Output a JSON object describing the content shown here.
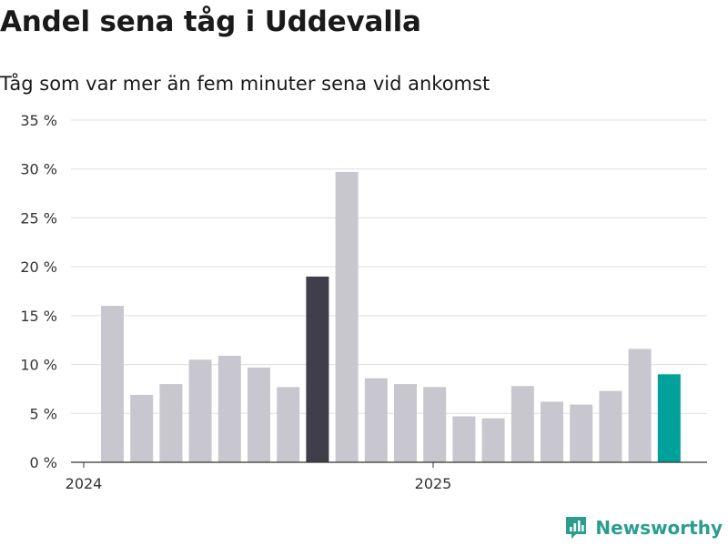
{
  "chart_data": {
    "type": "bar",
    "title": "Andel sena tåg i Uddevalla",
    "subtitle": "Tåg som var mer än fem minuter sena vid ankomst",
    "xlabel": "",
    "ylabel": "",
    "ylim": [
      0,
      35
    ],
    "yticks": [
      0,
      5,
      10,
      15,
      20,
      25,
      30,
      35
    ],
    "ytick_labels": [
      "0 %",
      "5 %",
      "10 %",
      "15 %",
      "20 %",
      "25 %",
      "30 %",
      "35 %"
    ],
    "xtick_labels": [
      {
        "label": "2024",
        "index": 0
      },
      {
        "label": "2025",
        "index": 12
      }
    ],
    "values": [
      16.0,
      6.9,
      8.0,
      10.5,
      10.9,
      9.7,
      7.7,
      19.0,
      29.7,
      8.6,
      8.0,
      7.7,
      4.7,
      4.5,
      7.8,
      6.2,
      5.9,
      7.3,
      11.6,
      9.0
    ],
    "highlight": {
      "dark_index": 7,
      "accent_index": 19
    },
    "grid": true,
    "legend": "none",
    "colors": {
      "bar": "#c8c7cf",
      "dark": "#3f3e4a",
      "accent": "#00a19a",
      "grid": "#dddddd",
      "axis": "#333333"
    }
  },
  "brand": {
    "name": "Newsworthy",
    "color": "#2a9d8f"
  }
}
